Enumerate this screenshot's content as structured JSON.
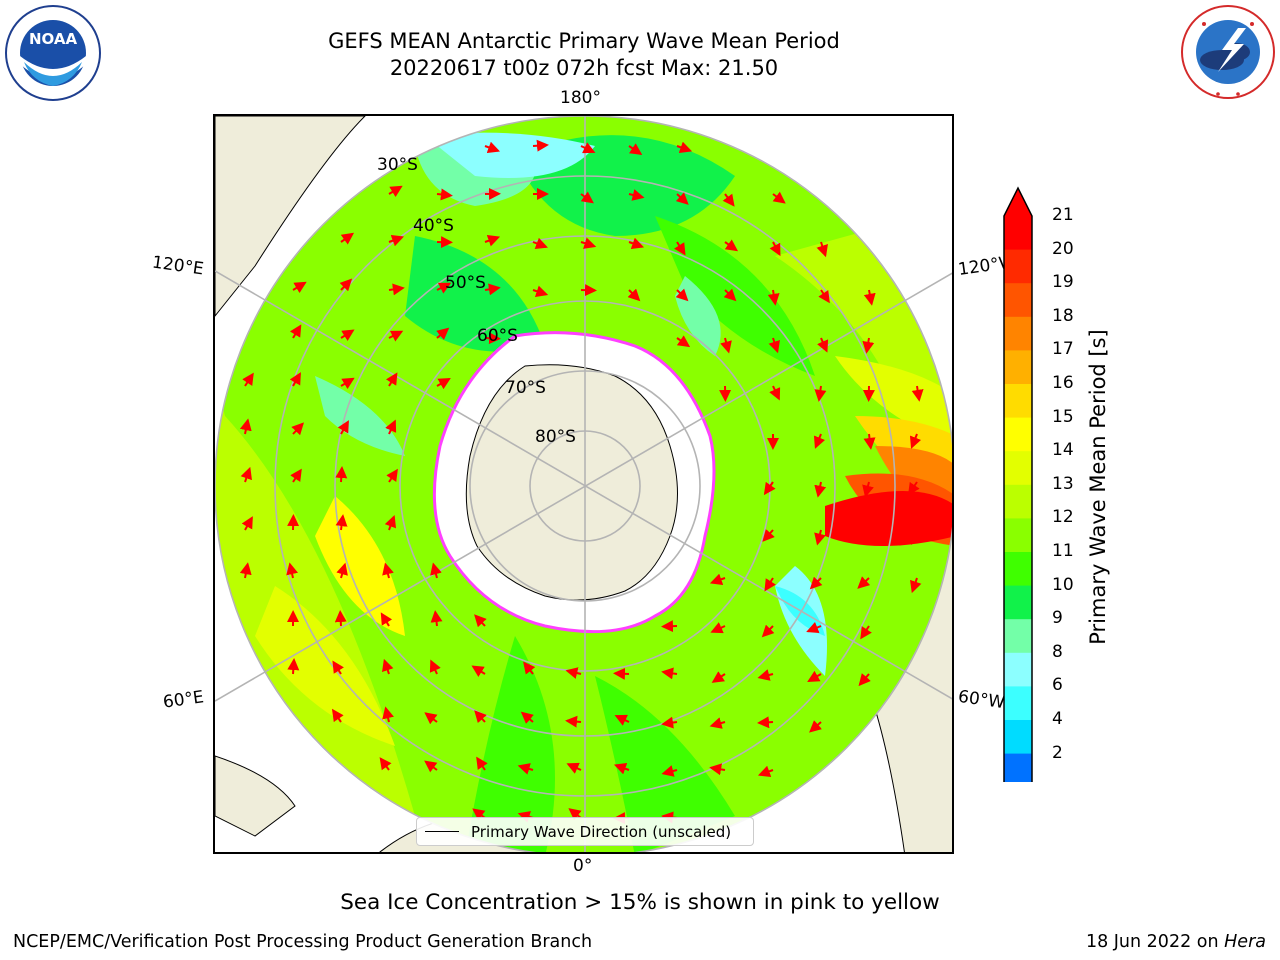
{
  "header": {
    "title_line1": "GEFS MEAN Antarctic Primary Wave Mean Period",
    "title_line2": "20220617 t00z 072h fcst   Max: 21.50"
  },
  "logos": {
    "left_text": "NOAA",
    "left_ring_text": "NATIONAL OCEANIC AND ATMOSPHERIC ADMINISTRATION · U.S. DEPARTMENT OF COMMERCE",
    "right_ring_text": "NATIONAL WEATHER SERVICE"
  },
  "map": {
    "longitude_labels": {
      "top": "180°",
      "bottom": "0°",
      "upper_left": "120°E",
      "upper_right": "120°W",
      "lower_left": "60°E",
      "lower_right": "60°W"
    },
    "latitude_labels": [
      "30°S",
      "40°S",
      "50°S",
      "60°S",
      "70°S",
      "80°S"
    ],
    "legend_label": "Primary Wave Direction (unscaled)",
    "colors": {
      "land": "#efedda",
      "ice": "#ffffff",
      "arrow": "#ff0000",
      "grid": "#b4b4b4"
    }
  },
  "colorbar": {
    "label": "Primary Wave Mean Period [s]",
    "ticks": [
      "21",
      "20",
      "19",
      "18",
      "17",
      "16",
      "15",
      "14",
      "13",
      "12",
      "11",
      "10",
      "9",
      "8",
      "6",
      "4",
      "2"
    ],
    "bands": [
      {
        "value": 21,
        "color": "#ff0000"
      },
      {
        "value": 20,
        "color": "#ff2a00"
      },
      {
        "value": 19,
        "color": "#ff5500"
      },
      {
        "value": 18,
        "color": "#ff8400"
      },
      {
        "value": 17,
        "color": "#ffb000"
      },
      {
        "value": 16,
        "color": "#ffdc00"
      },
      {
        "value": 15,
        "color": "#ffff00"
      },
      {
        "value": 14,
        "color": "#e3ff00"
      },
      {
        "value": 13,
        "color": "#bbff00"
      },
      {
        "value": 12,
        "color": "#8aff00"
      },
      {
        "value": 11,
        "color": "#3fff00"
      },
      {
        "value": 10,
        "color": "#11f24a"
      },
      {
        "value": 9,
        "color": "#73ffa8"
      },
      {
        "value": 8,
        "color": "#8cffff"
      },
      {
        "value": 6,
        "color": "#3cffff"
      },
      {
        "value": 4,
        "color": "#00dcff"
      },
      {
        "value": 2,
        "color": "#0072ff"
      }
    ],
    "over_color": "#ff0000",
    "under_color": "#0000ff"
  },
  "caption": "Sea Ice Concentration > 15% is shown in pink to yellow",
  "footer": {
    "left": "NCEP/EMC/Verification Post Processing Product Generation Branch",
    "right_prefix": "18 Jun 2022 on ",
    "right_italic": "Hera"
  }
}
